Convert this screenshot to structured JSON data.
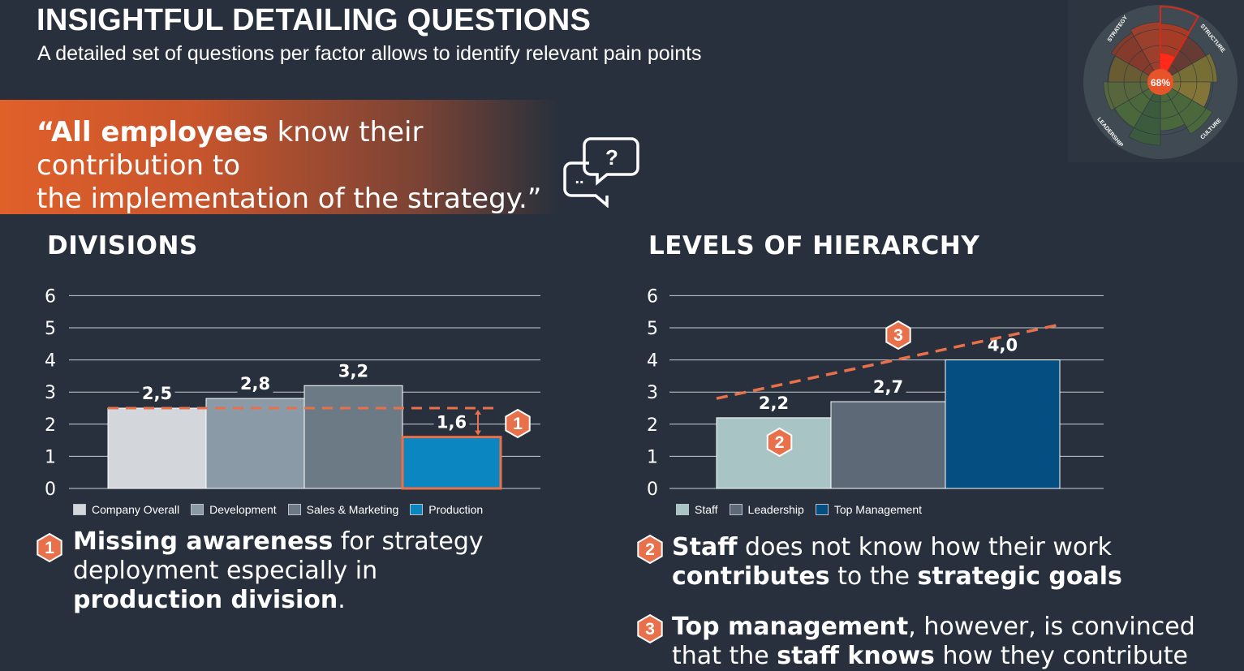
{
  "header": {
    "title": "INSIGHTFUL DETAILING QUESTIONS",
    "subtitle": "A detailed set of questions per factor allows to identify relevant pain points"
  },
  "quote": {
    "bold_part": "“All employees",
    "rest_line1": " know their contribution to",
    "line2": "the implementation of the strategy.”"
  },
  "question_icon": {
    "icon": "speech-bubbles-question-icon",
    "symbol": "?",
    "dots": ".."
  },
  "radar": {
    "center_label": "68%",
    "segments": [
      "STRATEGY",
      "STRUCTURE",
      "CULTURE",
      "LEADERSHIP"
    ],
    "accent": "#e8542a"
  },
  "sections": {
    "divisions_title": "DIVISIONS",
    "hierarchy_title": "LEVELS OF HIERARCHY"
  },
  "chart_data": [
    {
      "type": "bar",
      "title": "DIVISIONS",
      "categories": [
        "Company Overall",
        "Development",
        "Sales & Marketing",
        "Production"
      ],
      "values": [
        2.5,
        2.8,
        3.2,
        1.6
      ],
      "value_labels": [
        "2,5",
        "2,8",
        "3,2",
        "1,6"
      ],
      "colors": [
        "#d3d7dc",
        "#8a9aa7",
        "#6c7a86",
        "#0b86c0"
      ],
      "yticks": [
        "0",
        "1",
        "2",
        "3",
        "4",
        "5",
        "6"
      ],
      "ylim": [
        0,
        6
      ],
      "grid": true,
      "reference_line": {
        "value": 2.5,
        "style": "dashed",
        "color": "#e8704a"
      },
      "highlight": {
        "category": "Production",
        "badge": "1",
        "color": "#e8704a"
      },
      "legend": [
        "Company Overall",
        "Development",
        "Sales & Marketing",
        "Production"
      ],
      "legend_position": "bottom"
    },
    {
      "type": "bar",
      "title": "LEVELS OF HIERARCHY",
      "categories": [
        "Staff",
        "Leadership",
        "Top Management"
      ],
      "values": [
        2.2,
        2.7,
        4.0
      ],
      "value_labels": [
        "2,2",
        "2,7",
        "4,0"
      ],
      "colors": [
        "#a9c4c4",
        "#5d6976",
        "#054e82"
      ],
      "yticks": [
        "0",
        "1",
        "2",
        "3",
        "4",
        "5",
        "6"
      ],
      "ylim": [
        0,
        6
      ],
      "grid": true,
      "trend_line": {
        "from": 2.8,
        "to": 5.1,
        "style": "dashed",
        "color": "#e8704a"
      },
      "badges": [
        {
          "label": "2",
          "category": "Staff"
        },
        {
          "label": "3",
          "category": "trend"
        }
      ],
      "legend": [
        "Staff",
        "Leadership",
        "Top Management"
      ],
      "legend_position": "bottom"
    }
  ],
  "notes": [
    {
      "badge": "1",
      "parts": [
        {
          "text": "Missing awareness",
          "bold": true
        },
        {
          "text": " for strategy deployment especially in ",
          "bold": false
        },
        {
          "text": "production division",
          "bold": true
        },
        {
          "text": ".",
          "bold": false
        }
      ]
    },
    {
      "badge": "2",
      "parts": [
        {
          "text": "Staff",
          "bold": true
        },
        {
          "text": " does not know how their work ",
          "bold": false
        },
        {
          "text": "contributes",
          "bold": true
        },
        {
          "text": " to the ",
          "bold": false
        },
        {
          "text": "strategic goals",
          "bold": true
        }
      ]
    },
    {
      "badge": "3",
      "parts": [
        {
          "text": "Top management",
          "bold": true
        },
        {
          "text": ", however,  is convinced that the ",
          "bold": false
        },
        {
          "text": "staff knows",
          "bold": true
        },
        {
          "text": " how they contribute",
          "bold": false
        }
      ]
    }
  ],
  "colors": {
    "background": "#27303c",
    "accent": "#e8704a",
    "badge": "#e8704a"
  }
}
